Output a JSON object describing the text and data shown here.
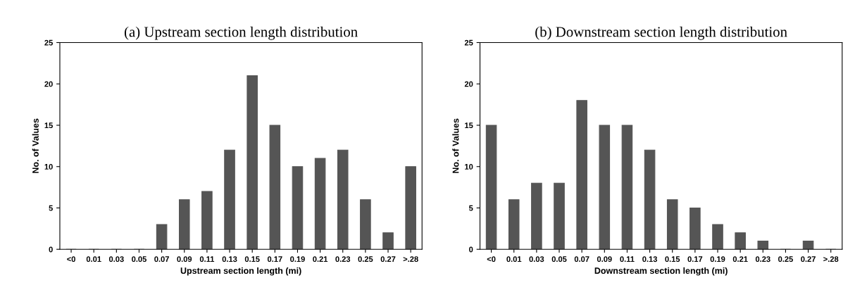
{
  "chart_data": [
    {
      "type": "bar",
      "title": "(a) Upstream section length distribution",
      "xlabel": "Upstream section length (mi)",
      "ylabel": "No. of Values",
      "categories": [
        "<0",
        "0.01",
        "0.03",
        "0.05",
        "0.07",
        "0.09",
        "0.11",
        "0.13",
        "0.15",
        "0.17",
        "0.19",
        "0.21",
        "0.23",
        "0.25",
        "0.27",
        ">.28"
      ],
      "values": [
        0,
        0,
        0,
        0,
        3,
        6,
        7,
        12,
        21,
        15,
        10,
        11,
        12,
        6,
        2,
        10
      ],
      "color": "#555555",
      "ylim": [
        0,
        25
      ],
      "yticks": [
        0,
        5,
        10,
        15,
        20,
        25
      ],
      "grid": false,
      "legend": false
    },
    {
      "type": "bar",
      "title": "(b) Downstream section length distribution",
      "xlabel": "Downstream section length (mi)",
      "ylabel": "No. of Values",
      "categories": [
        "<0",
        "0.01",
        "0.03",
        "0.05",
        "0.07",
        "0.09",
        "0.11",
        "0.13",
        "0.15",
        "0.17",
        "0.19",
        "0.21",
        "0.23",
        "0.25",
        "0.27",
        ">.28"
      ],
      "values": [
        15,
        6,
        8,
        8,
        18,
        15,
        15,
        12,
        6,
        5,
        3,
        2,
        1,
        0,
        1,
        0
      ],
      "color": "#555555",
      "ylim": [
        0,
        25
      ],
      "yticks": [
        0,
        5,
        10,
        15,
        20,
        25
      ],
      "grid": false,
      "legend": false
    }
  ]
}
